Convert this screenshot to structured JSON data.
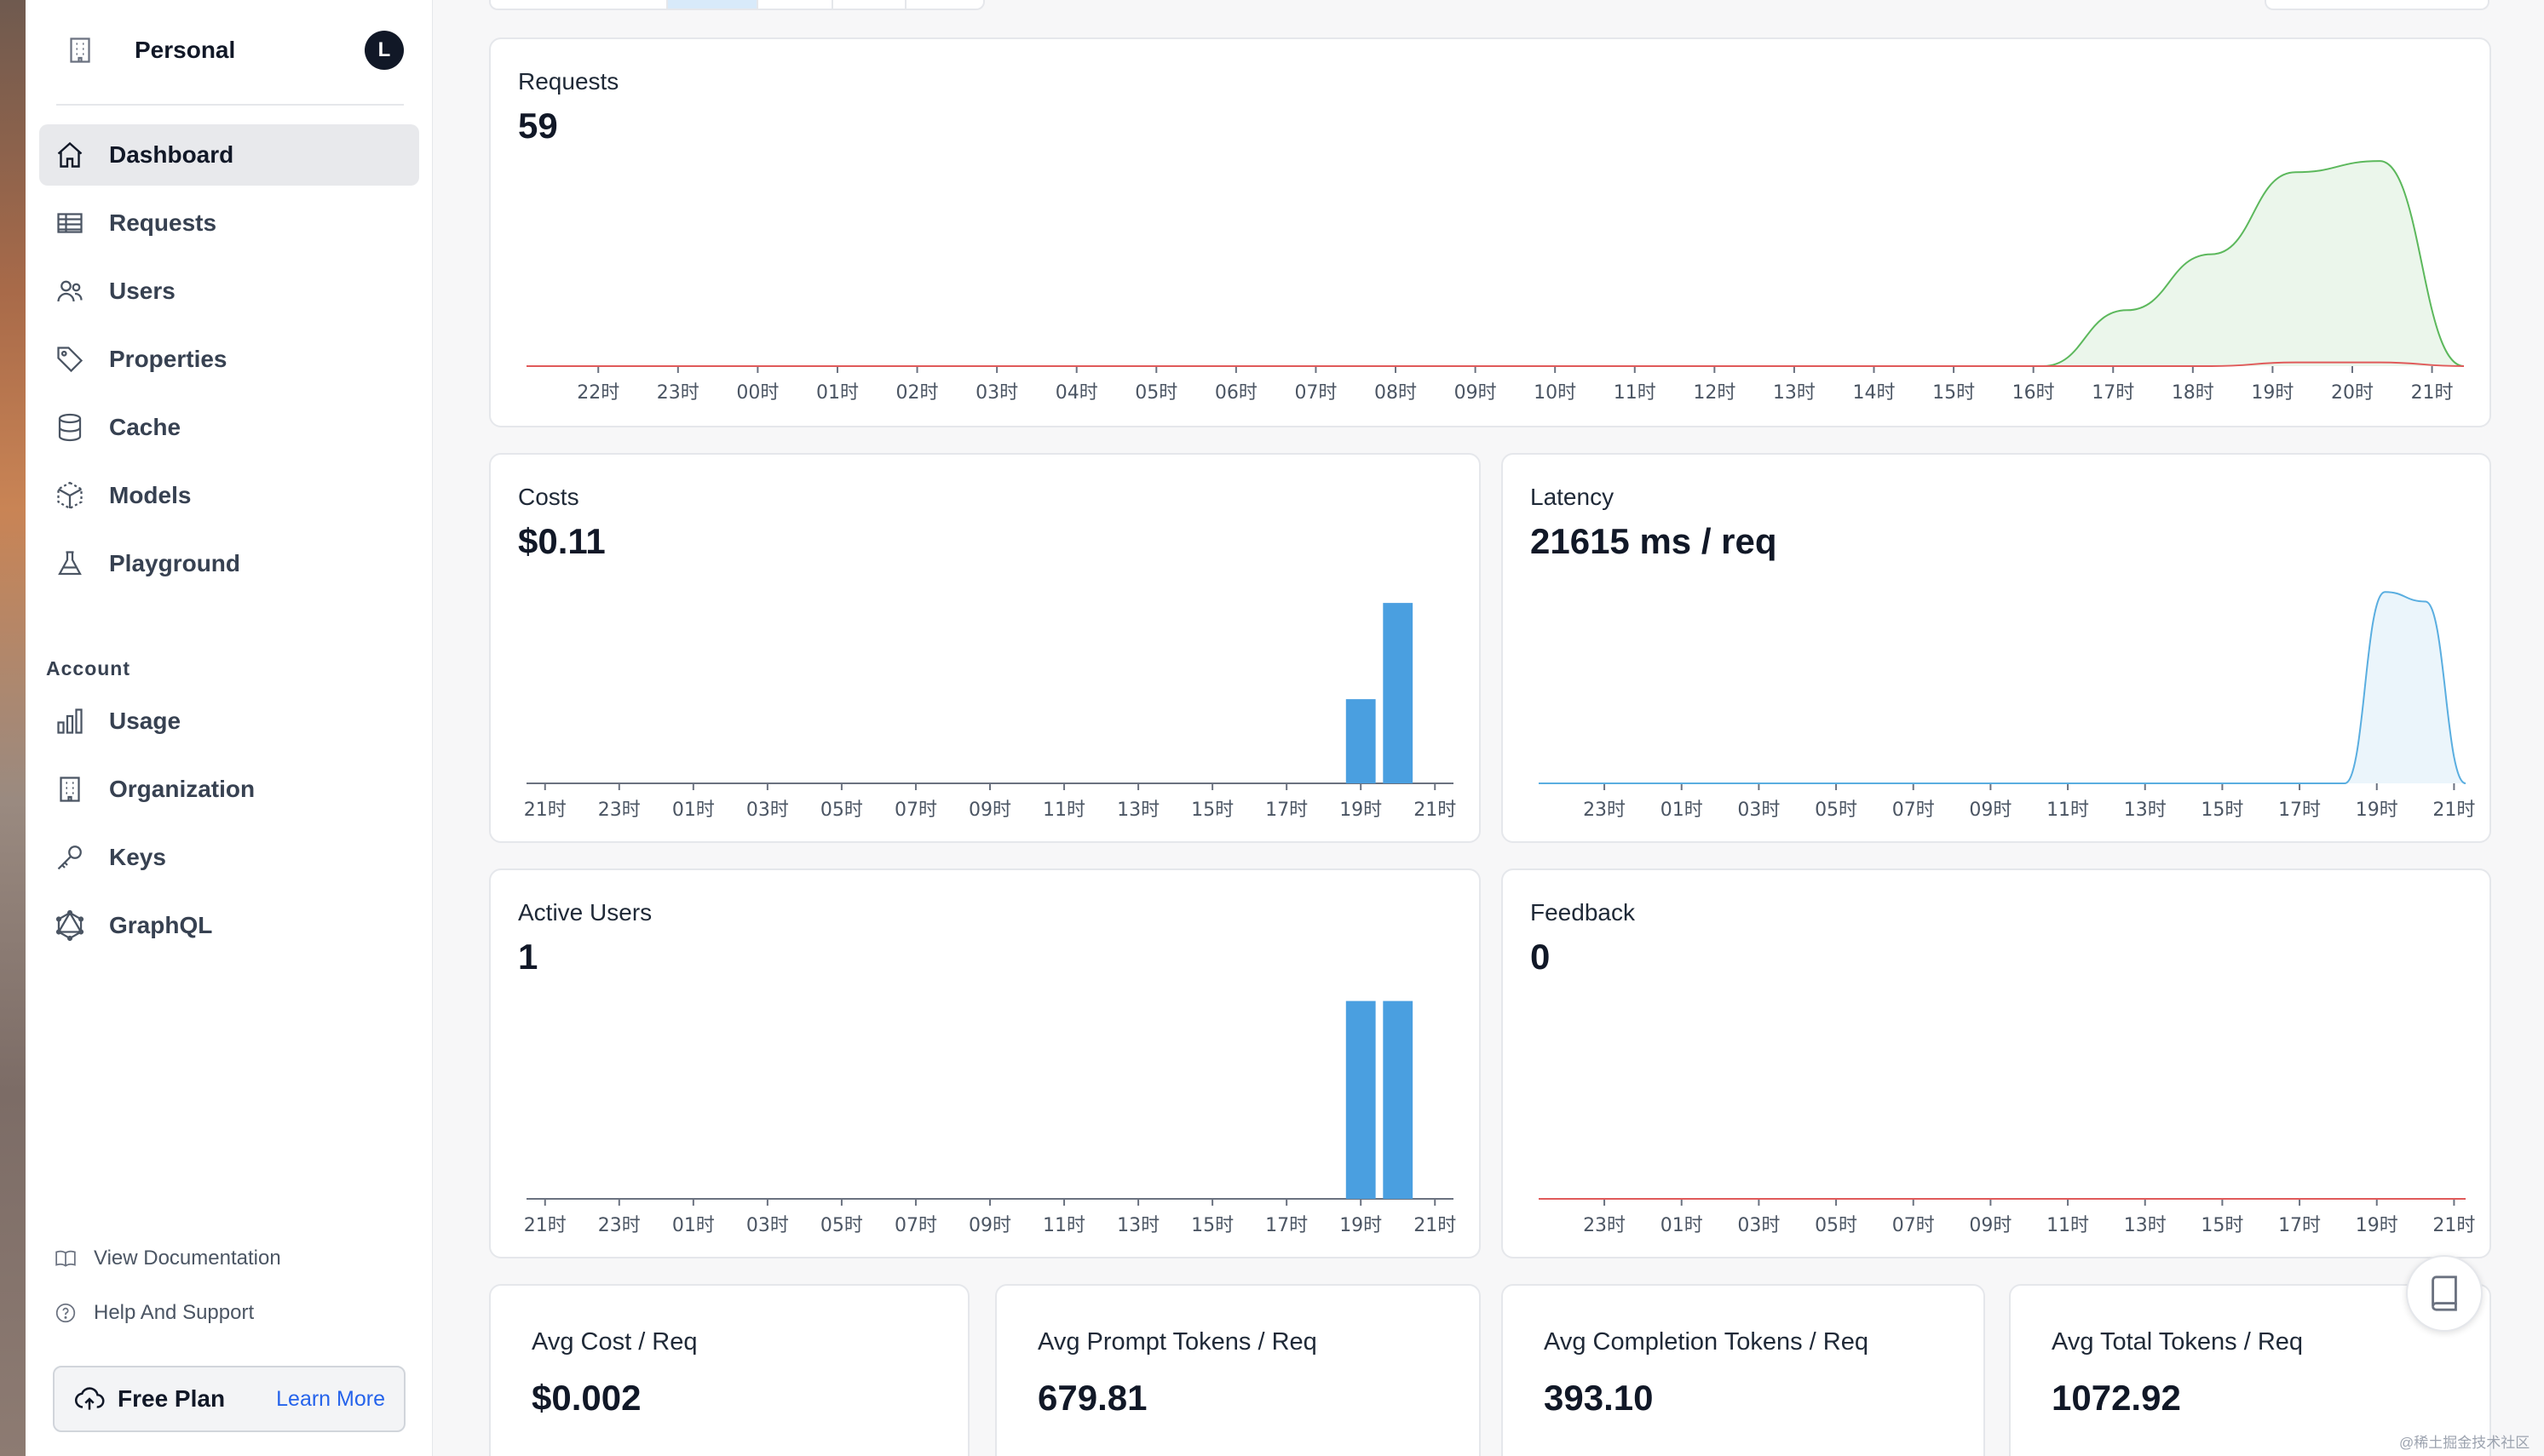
{
  "sidebar": {
    "org_name": "Personal",
    "avatar_letter": "L",
    "nav": [
      {
        "label": "Dashboard",
        "icon": "home-icon"
      },
      {
        "label": "Requests",
        "icon": "table-icon"
      },
      {
        "label": "Users",
        "icon": "users-icon"
      },
      {
        "label": "Properties",
        "icon": "tag-icon"
      },
      {
        "label": "Cache",
        "icon": "database-icon"
      },
      {
        "label": "Models",
        "icon": "cube-icon"
      },
      {
        "label": "Playground",
        "icon": "beaker-icon"
      }
    ],
    "account_heading": "Account",
    "account_nav": [
      {
        "label": "Usage",
        "icon": "bar-chart-icon"
      },
      {
        "label": "Organization",
        "icon": "building-icon"
      },
      {
        "label": "Keys",
        "icon": "key-icon"
      },
      {
        "label": "GraphQL",
        "icon": "graphql-icon"
      }
    ],
    "view_docs": "View Documentation",
    "help": "Help And Support",
    "plan_name": "Free Plan",
    "learn_more": "Learn More"
  },
  "cards": {
    "requests": {
      "title": "Requests",
      "value": "59"
    },
    "costs": {
      "title": "Costs",
      "value": "$0.11"
    },
    "latency": {
      "title": "Latency",
      "value": "21615 ms / req"
    },
    "active_users": {
      "title": "Active Users",
      "value": "1"
    },
    "feedback": {
      "title": "Feedback",
      "value": "0"
    }
  },
  "stats": [
    {
      "title": "Avg Cost / Req",
      "value": "$0.002"
    },
    {
      "title": "Avg Prompt Tokens / Req",
      "value": "679.81"
    },
    {
      "title": "Avg Completion Tokens / Req",
      "value": "393.10"
    },
    {
      "title": "Avg Total Tokens / Req",
      "value": "1072.92"
    }
  ],
  "watermark": "@稀土掘金技术社区",
  "colors": {
    "accent_blue": "#4a9fe0",
    "line_green": "#5cb85c",
    "line_red": "#e05a5a",
    "latency_line": "#5aaee0"
  },
  "chart_data": [
    {
      "id": "requests",
      "type": "area",
      "xticks": [
        "22时",
        "23时",
        "00时",
        "01时",
        "02时",
        "03时",
        "04时",
        "05时",
        "06时",
        "07时",
        "08时",
        "09时",
        "10时",
        "11时",
        "12时",
        "13时",
        "14时",
        "15时",
        "16时",
        "17时",
        "18时",
        "19时",
        "20时",
        "21时"
      ],
      "series": [
        {
          "color": "#5cb85c",
          "x": [
            0,
            1,
            2,
            3,
            4,
            5,
            6,
            7,
            8,
            9,
            10,
            11,
            12,
            13,
            14,
            15,
            16,
            17,
            18,
            19,
            20,
            21,
            22,
            23
          ],
          "values": [
            0,
            0,
            0,
            0,
            0,
            0,
            0,
            0,
            0,
            0,
            0,
            0,
            0,
            0,
            0,
            0,
            0,
            0,
            0,
            15,
            30,
            52,
            55,
            0
          ]
        },
        {
          "color": "#e05a5a",
          "x": [
            0,
            1,
            2,
            3,
            4,
            5,
            6,
            7,
            8,
            9,
            10,
            11,
            12,
            13,
            14,
            15,
            16,
            17,
            18,
            19,
            20,
            21,
            22,
            23
          ],
          "values": [
            0,
            0,
            0,
            0,
            0,
            0,
            0,
            0,
            0,
            0,
            0,
            0,
            0,
            0,
            0,
            0,
            0,
            0,
            0,
            0,
            0,
            1,
            1,
            0
          ]
        }
      ],
      "ylim": [
        0,
        58
      ]
    },
    {
      "id": "costs",
      "type": "bar",
      "xticks": [
        "21时",
        "23时",
        "01时",
        "03时",
        "05时",
        "07时",
        "09时",
        "11时",
        "13时",
        "15时",
        "17时",
        "19时",
        "21时"
      ],
      "bars": [
        {
          "hour_index": 22,
          "value": 0.035
        },
        {
          "hour_index": 23,
          "value": 0.075
        }
      ],
      "hour_count": 25,
      "ylim": [
        0,
        0.08
      ]
    },
    {
      "id": "latency",
      "type": "area",
      "xticks": [
        "23时",
        "01时",
        "03时",
        "05时",
        "07时",
        "09时",
        "11时",
        "13时",
        "15时",
        "17时",
        "19时",
        "21时"
      ],
      "series": [
        {
          "color": "#5aaee0",
          "x": [
            0,
            1,
            2,
            3,
            4,
            5,
            6,
            7,
            8,
            9,
            10,
            11,
            12,
            13,
            14,
            15,
            16,
            17,
            18,
            19,
            20,
            21,
            22,
            23
          ],
          "values": [
            0,
            0,
            0,
            0,
            0,
            0,
            0,
            0,
            0,
            0,
            0,
            0,
            0,
            0,
            0,
            0,
            0,
            0,
            0,
            0,
            0,
            40000,
            38000,
            0
          ]
        }
      ],
      "ylim": [
        0,
        42000
      ]
    },
    {
      "id": "active_users",
      "type": "bar",
      "xticks": [
        "21时",
        "23时",
        "01时",
        "03时",
        "05时",
        "07时",
        "09时",
        "11时",
        "13时",
        "15时",
        "17时",
        "19时",
        "21时"
      ],
      "bars": [
        {
          "hour_index": 22,
          "value": 1
        },
        {
          "hour_index": 23,
          "value": 1
        }
      ],
      "hour_count": 25,
      "ylim": [
        0,
        1.05
      ]
    },
    {
      "id": "feedback",
      "type": "line",
      "xticks": [
        "23时",
        "01时",
        "03时",
        "05时",
        "07时",
        "09时",
        "11时",
        "13时",
        "15时",
        "17时",
        "19时",
        "21时"
      ],
      "series": [
        {
          "color": "#e05a5a",
          "x": [
            0,
            23
          ],
          "values": [
            0,
            0
          ]
        }
      ],
      "ylim": [
        0,
        1
      ]
    }
  ]
}
